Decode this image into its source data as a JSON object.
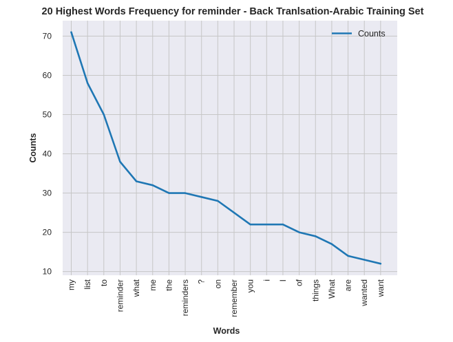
{
  "chart_data": {
    "type": "line",
    "title": "20 Highest Words Frequency for reminder - Back Tranlsation-Arabic Training Set",
    "xlabel": "Words",
    "ylabel": "Counts",
    "categories": [
      "my",
      "list",
      "to",
      "reminder",
      "what",
      "me",
      "the",
      "reminders",
      "?",
      "on",
      "remember",
      "you",
      "i",
      "I",
      "of",
      "things",
      "What",
      "are",
      "wanted",
      "want"
    ],
    "series": [
      {
        "name": "Counts",
        "values": [
          71,
          58,
          50,
          38,
          33,
          32,
          30,
          30,
          29,
          28,
          25,
          22,
          22,
          22,
          20,
          19,
          17,
          14,
          13,
          12
        ]
      }
    ],
    "ylim": [
      9.05,
      73.95
    ],
    "yticks": [
      10,
      20,
      30,
      40,
      50,
      60,
      70
    ],
    "grid": true,
    "legend": "top-right",
    "colors": {
      "background": "#eaeaf2",
      "grid": "#c6c6c6",
      "line": "#1f77b4"
    }
  }
}
